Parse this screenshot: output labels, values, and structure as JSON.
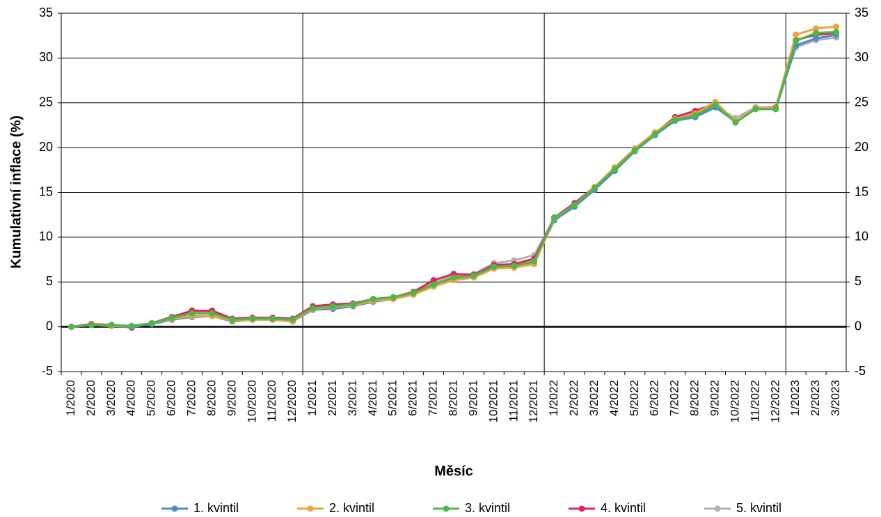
{
  "chart_data": {
    "type": "line",
    "y_label": "Kumulativní inflace (%)",
    "x_label": "Měsíc",
    "categories": [
      "1/2020",
      "2/2020",
      "3/2020",
      "4/2020",
      "5/2020",
      "6/2020",
      "7/2020",
      "8/2020",
      "9/2020",
      "10/2020",
      "11/2020",
      "12/2020",
      "1/2021",
      "2/2021",
      "3/2021",
      "4/2021",
      "5/2021",
      "6/2021",
      "7/2021",
      "8/2021",
      "9/2021",
      "10/2021",
      "11/2021",
      "12/2021",
      "1/2022",
      "2/2022",
      "3/2022",
      "4/2022",
      "5/2022",
      "6/2022",
      "7/2022",
      "8/2022",
      "9/2022",
      "10/2022",
      "11/2022",
      "12/2022",
      "1/2023",
      "2/2023",
      "3/2023"
    ],
    "series": [
      {
        "name": "1. kvintil",
        "color": "#4a8cc8",
        "values": [
          0,
          0.2,
          0.1,
          0,
          0.3,
          0.8,
          1.1,
          1.2,
          0.6,
          0.8,
          0.8,
          0.6,
          1.9,
          2.0,
          2.3,
          2.8,
          3.1,
          3.6,
          4.6,
          5.4,
          5.7,
          6.7,
          6.8,
          7.2,
          11.9,
          13.4,
          15.3,
          17.4,
          19.6,
          21.4,
          23.0,
          23.4,
          24.5,
          22.9,
          24.3,
          24.3,
          31.4,
          32.2,
          32.6
        ]
      },
      {
        "name": "2. kvintil",
        "color": "#f0a040",
        "values": [
          0,
          0.2,
          0.1,
          0.1,
          0.4,
          0.9,
          1.2,
          1.2,
          0.7,
          0.8,
          0.8,
          0.6,
          2.0,
          2.2,
          2.4,
          2.9,
          3.1,
          3.6,
          4.5,
          5.2,
          5.5,
          6.5,
          6.6,
          7.0,
          12.1,
          13.6,
          15.6,
          17.8,
          19.9,
          21.7,
          23.2,
          23.8,
          25.1,
          22.9,
          24.4,
          24.4,
          32.6,
          33.3,
          33.5
        ]
      },
      {
        "name": "3. kvintil",
        "color": "#4cb848",
        "values": [
          0,
          0.2,
          0.2,
          0.1,
          0.4,
          1.0,
          1.5,
          1.5,
          0.8,
          0.9,
          0.9,
          0.8,
          2.1,
          2.3,
          2.5,
          3.1,
          3.3,
          3.8,
          4.7,
          5.5,
          5.7,
          6.7,
          6.8,
          7.3,
          12.2,
          13.6,
          15.5,
          17.6,
          19.7,
          21.5,
          23.1,
          23.6,
          24.8,
          22.8,
          24.3,
          24.3,
          31.9,
          32.8,
          32.9
        ]
      },
      {
        "name": "4. kvintil",
        "color": "#e0245a",
        "values": [
          0,
          0.3,
          0.2,
          -0.1,
          0.4,
          1.1,
          1.8,
          1.8,
          0.9,
          1.0,
          1.0,
          0.9,
          2.3,
          2.5,
          2.6,
          3.1,
          3.3,
          3.9,
          5.2,
          5.9,
          5.8,
          6.9,
          7.0,
          7.6,
          12.2,
          13.8,
          15.6,
          17.7,
          19.8,
          21.6,
          23.4,
          24.1,
          24.9,
          22.9,
          24.4,
          24.5,
          32.0,
          32.6,
          32.8
        ]
      },
      {
        "name": "5. kvintil",
        "color": "#b0b0b0",
        "values": [
          0,
          0.2,
          0.1,
          0,
          0.4,
          1.0,
          1.6,
          1.6,
          0.9,
          1.0,
          1.0,
          0.9,
          2.2,
          2.4,
          2.6,
          3.1,
          3.3,
          3.8,
          4.9,
          5.7,
          5.9,
          7.1,
          7.4,
          8.0,
          12.1,
          13.6,
          15.4,
          17.6,
          19.8,
          21.5,
          23.2,
          23.6,
          24.6,
          23.3,
          24.5,
          24.4,
          31.2,
          32.0,
          32.3
        ]
      }
    ],
    "ylim": [
      -5,
      35
    ],
    "yticks": [
      -5,
      0,
      5,
      10,
      15,
      20,
      25,
      30,
      35
    ],
    "y2lim": [
      -5,
      35
    ],
    "y2ticks": [
      -5,
      0,
      5,
      10,
      15,
      20,
      25,
      30,
      35
    ],
    "grid": true,
    "legend": "bottom"
  }
}
